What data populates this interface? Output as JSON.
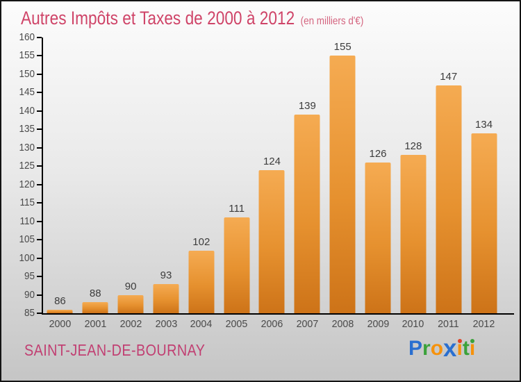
{
  "header": {
    "title": "Autres Impôts et Taxes de 2000 à 2012",
    "subtitle": "(en milliers d'€)"
  },
  "chart_data": {
    "type": "bar",
    "title": "Autres Impôts et Taxes de 2000 à 2012",
    "subtitle_note": "(en milliers d'€)",
    "categories": [
      "2000",
      "2001",
      "2002",
      "2003",
      "2004",
      "2005",
      "2006",
      "2007",
      "2008",
      "2009",
      "2010",
      "2011",
      "2012"
    ],
    "values": [
      86,
      88,
      90,
      93,
      102,
      111,
      124,
      139,
      155,
      126,
      128,
      147,
      134
    ],
    "xlabel": "",
    "ylabel": "",
    "ylim": [
      85,
      160
    ],
    "ytick_step": 5,
    "grid": false,
    "legend": "none",
    "bar_value_labels_shown": true
  },
  "footer": {
    "city": "SAINT-JEAN-DE-BOURNAY",
    "logo": {
      "text": "Proxiti",
      "letters": [
        {
          "ch": "P",
          "color": "#2a6fd0"
        },
        {
          "ch": "r",
          "color": "#3ba23b"
        },
        {
          "ch": "o",
          "color": "#f6920c"
        },
        {
          "ch": "x",
          "color": "#2a6fd0",
          "big": true
        },
        {
          "ch": "i",
          "color": "#f6920c",
          "dot": "#e04328"
        },
        {
          "ch": "t",
          "color": "#3ba23b"
        },
        {
          "ch": "i",
          "color": "#f6920c",
          "dot": "#3ba23b"
        }
      ]
    }
  },
  "colors": {
    "title": "#cf4468",
    "subtitle": "#d4647f",
    "city": "#c13f72",
    "value_label": "#3c3c3c",
    "tick_label": "#4a4a4a",
    "axis": "#000000",
    "bg_top": "#fcfcfc",
    "bg_mid": "#e9e9e9",
    "bg_bottom": "#c5c5c5",
    "bar_top": "#f5ab52",
    "bar_mid": "#e6912f",
    "bar_bottom": "#cd7318"
  }
}
